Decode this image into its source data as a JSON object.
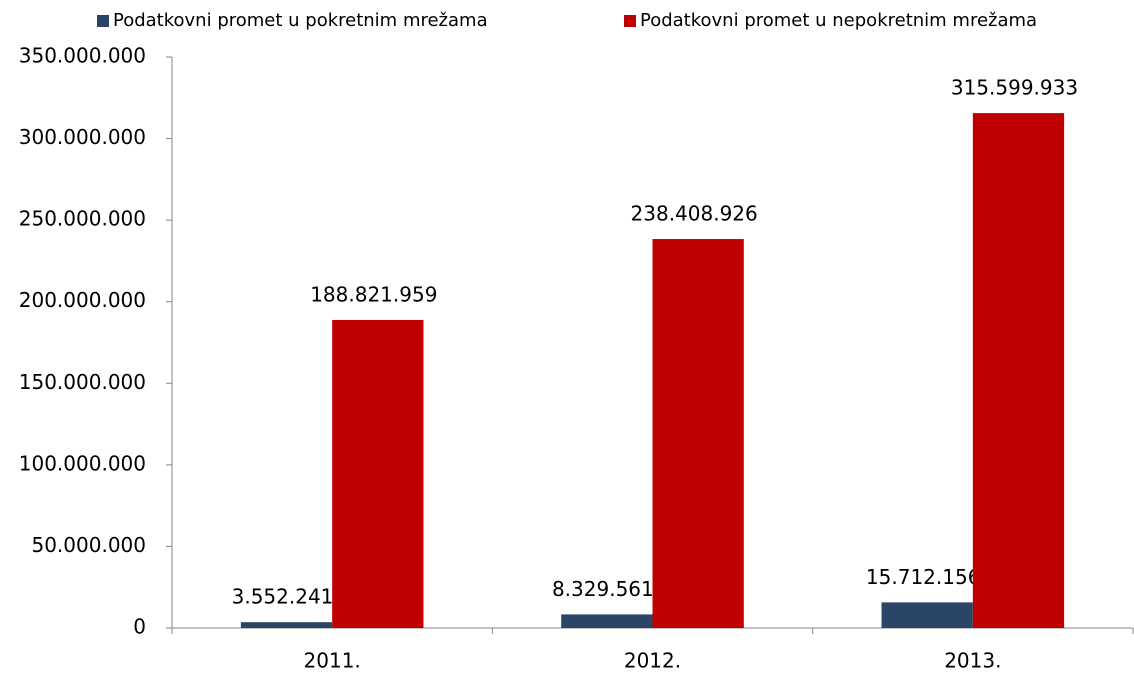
{
  "chart_data": {
    "type": "bar",
    "categories": [
      "2011.",
      "2012.",
      "2013."
    ],
    "series": [
      {
        "name": "Podatkovni promet u pokretnim mrežama",
        "color": "#2a4566",
        "values": [
          3552241,
          8329561,
          15712156
        ],
        "value_labels": [
          "3.552.241",
          "8.329.561",
          "15.712.156"
        ]
      },
      {
        "name": "Podatkovni promet u nepokretnim mrežama",
        "color": "#c00000",
        "values": [
          188821959,
          238408926,
          315599933
        ],
        "value_labels": [
          "188.821.959",
          "238.408.926",
          "315.599.933"
        ]
      }
    ],
    "ylim": [
      0,
      350000000
    ],
    "yticks": [
      0,
      {
        "value": 50000000,
        "label": "50.000.000"
      },
      {
        "value": 100000000,
        "label": "100.000.000"
      },
      {
        "value": 150000000,
        "label": "150.000.000"
      },
      {
        "value": 200000000,
        "label": "200.000.000"
      },
      {
        "value": 250000000,
        "label": "250.000.000"
      },
      {
        "value": 300000000,
        "label": "300.000.000"
      },
      {
        "value": 350000000,
        "label": "350.000.000"
      }
    ],
    "grid": false,
    "legend": "top"
  }
}
